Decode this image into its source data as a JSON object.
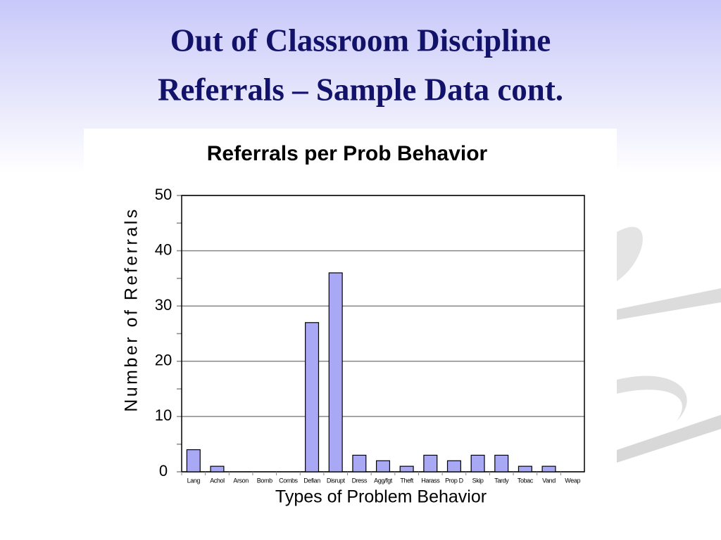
{
  "slide": {
    "title_lines": [
      "Out of Classroom Discipline",
      "Referrals – Sample Data cont."
    ]
  },
  "chart_data": {
    "type": "bar",
    "title": "Referrals per Prob Behavior",
    "x_label": "Types of Problem Behavior",
    "y_label": "Number of Referrals",
    "categories": [
      "Lang",
      "Achol",
      "Arson",
      "Bomb",
      "Combs",
      "Defian",
      "Disrupt",
      "Dress",
      "Agg/fgt",
      "Theft",
      "Harass",
      "Prop D",
      "Skip",
      "Tardy",
      "Tobac",
      "Vand",
      "Weap"
    ],
    "values": [
      4,
      1,
      0,
      0,
      0,
      27,
      36,
      3,
      2,
      1,
      3,
      2,
      3,
      3,
      1,
      1,
      0
    ],
    "color": "#a8a8f4",
    "ylim": [
      0,
      50
    ],
    "yticks": [
      0,
      10,
      20,
      30,
      40,
      50
    ],
    "minor_yticks": [
      5,
      15,
      25,
      35,
      45
    ],
    "grid": true
  }
}
